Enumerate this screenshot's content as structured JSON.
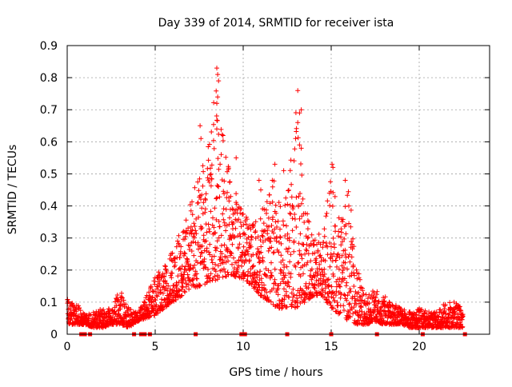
{
  "chart_data": {
    "type": "scatter",
    "title": "Day 339 of 2014, SRMTID for receiver ista",
    "xlabel": "GPS time / hours",
    "ylabel": "SRMTID / TECUs",
    "xlim": [
      0,
      24
    ],
    "ylim": [
      0,
      0.9
    ],
    "x_ticks": [
      0,
      5,
      10,
      15,
      20
    ],
    "x_tick_labels": [
      "0",
      "5",
      "10",
      "15",
      "20"
    ],
    "y_ticks": [
      0,
      0.1,
      0.2,
      0.3,
      0.4,
      0.5,
      0.6,
      0.7,
      0.8,
      0.9
    ],
    "y_tick_labels": [
      "0",
      "0.1",
      "0.2",
      "0.3",
      "0.4",
      "0.5",
      "0.6",
      "0.7",
      "0.8",
      "0.9"
    ],
    "grid": true,
    "marker": "plus",
    "series_color": "#ff0000",
    "series": [
      {
        "name": "SRMTID",
        "envelope": {
          "x": [
            0,
            0.5,
            1,
            1.5,
            2,
            2.5,
            3,
            3.5,
            4,
            4.5,
            5,
            5.5,
            6,
            6.5,
            7,
            7.5,
            8,
            8.5,
            9,
            9.5,
            10,
            10.5,
            11,
            11.5,
            12,
            12.5,
            13,
            13.5,
            14,
            14.5,
            15,
            15.5,
            16,
            16.5,
            17,
            17.5,
            18,
            18.5,
            19,
            19.5,
            20,
            20.5,
            21,
            21.5,
            22,
            22.5
          ],
          "low": [
            0.03,
            0.03,
            0.03,
            0.02,
            0.02,
            0.03,
            0.03,
            0.02,
            0.04,
            0.05,
            0.06,
            0.08,
            0.1,
            0.12,
            0.14,
            0.15,
            0.16,
            0.17,
            0.18,
            0.18,
            0.17,
            0.15,
            0.12,
            0.1,
            0.08,
            0.08,
            0.08,
            0.1,
            0.12,
            0.12,
            0.08,
            0.06,
            0.04,
            0.03,
            0.03,
            0.04,
            0.03,
            0.03,
            0.03,
            0.02,
            0.02,
            0.02,
            0.02,
            0.02,
            0.02,
            0.02
          ],
          "high": [
            0.11,
            0.1,
            0.06,
            0.07,
            0.08,
            0.08,
            0.14,
            0.08,
            0.07,
            0.12,
            0.18,
            0.22,
            0.28,
            0.33,
            0.42,
            0.5,
            0.62,
            0.78,
            0.56,
            0.46,
            0.38,
            0.34,
            0.38,
            0.5,
            0.46,
            0.42,
            0.72,
            0.42,
            0.3,
            0.32,
            0.5,
            0.36,
            0.45,
            0.22,
            0.12,
            0.14,
            0.12,
            0.1,
            0.08,
            0.07,
            0.08,
            0.07,
            0.07,
            0.1,
            0.1,
            0.08
          ],
          "samples_per_hour": 110
        },
        "spikes": [
          {
            "x": 7.55,
            "y": 0.65
          },
          {
            "x": 7.6,
            "y": 0.61
          },
          {
            "x": 8.5,
            "y": 0.83
          },
          {
            "x": 8.55,
            "y": 0.81
          },
          {
            "x": 8.6,
            "y": 0.79
          },
          {
            "x": 8.55,
            "y": 0.74
          },
          {
            "x": 8.5,
            "y": 0.72
          },
          {
            "x": 8.5,
            "y": 0.64
          },
          {
            "x": 9.6,
            "y": 0.55
          },
          {
            "x": 13.1,
            "y": 0.76
          },
          {
            "x": 13.3,
            "y": 0.7
          },
          {
            "x": 13.2,
            "y": 0.69
          },
          {
            "x": 13.1,
            "y": 0.66
          },
          {
            "x": 13.2,
            "y": 0.59
          },
          {
            "x": 13.3,
            "y": 0.58
          },
          {
            "x": 15.05,
            "y": 0.53
          },
          {
            "x": 15.1,
            "y": 0.52
          },
          {
            "x": 15.8,
            "y": 0.48
          },
          {
            "x": 11.8,
            "y": 0.53
          },
          {
            "x": 12.3,
            "y": 0.51
          },
          {
            "x": 11.0,
            "y": 0.45
          },
          {
            "x": 10.9,
            "y": 0.48
          },
          {
            "x": 14.9,
            "y": 0.44
          },
          {
            "x": 16.0,
            "y": 0.4
          }
        ],
        "zeros_x": [
          0.8,
          0.9,
          1.0,
          1.3,
          3.8,
          4.2,
          4.4,
          4.7,
          7.3,
          9.9,
          10.1,
          12.5,
          15.0,
          17.6,
          20.2,
          22.6
        ]
      }
    ]
  }
}
